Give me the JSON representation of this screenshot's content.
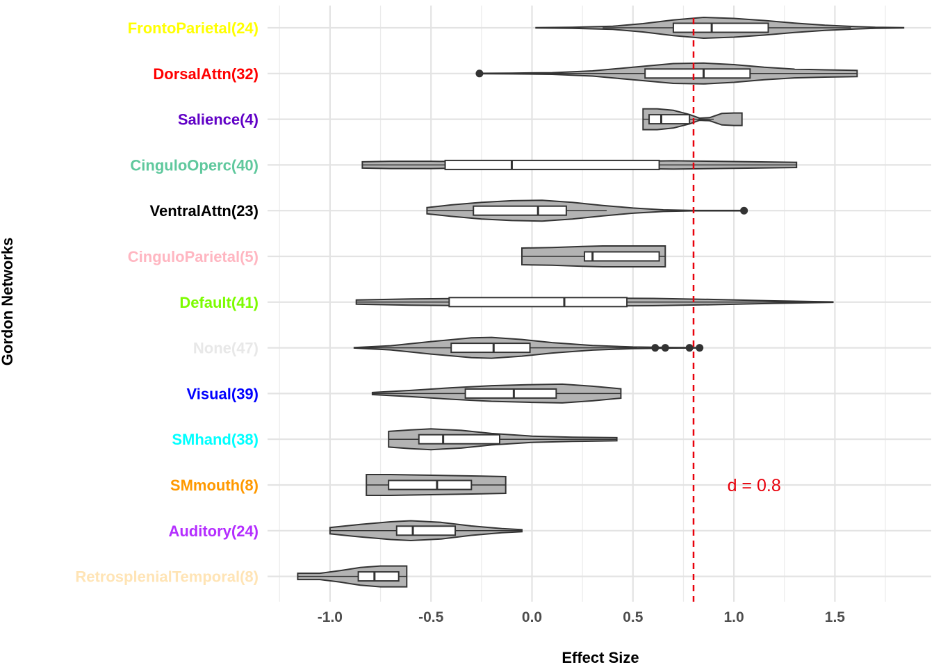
{
  "chart_data": {
    "type": "violin",
    "orientation": "horizontal",
    "xlabel": "Effect Size",
    "ylabel": "Gordon Networks",
    "xlim": [
      -1.25,
      1.9
    ],
    "xticks": [
      -1.0,
      -0.5,
      0.0,
      0.5,
      1.0,
      1.5
    ],
    "xtick_labels": [
      "-1.0",
      "-0.5",
      "0.0",
      "0.5",
      "1.0",
      "1.5"
    ],
    "grid": true,
    "fill_color": "#b3b3b3",
    "reference_line": {
      "x": 0.8,
      "color": "#e8000b",
      "style": "dashed"
    },
    "annotation": {
      "text": "d = 0.8",
      "x": 1.1,
      "category": "SMmouth(8)",
      "color": "#e8000b"
    },
    "categories": [
      {
        "label": "FrontoParietal(24)",
        "color": "#ffff00",
        "min": 0.02,
        "max": 1.84,
        "q1": 0.7,
        "median": 0.89,
        "q3": 1.17,
        "whisker_low": 0.35,
        "whisker_high": 1.58,
        "outliers": [],
        "density": [
          [
            0.02,
            0.02
          ],
          [
            0.2,
            0.05
          ],
          [
            0.4,
            0.15
          ],
          [
            0.55,
            0.4
          ],
          [
            0.7,
            0.75
          ],
          [
            0.85,
            1.0
          ],
          [
            1.0,
            0.9
          ],
          [
            1.15,
            0.7
          ],
          [
            1.3,
            0.45
          ],
          [
            1.45,
            0.25
          ],
          [
            1.6,
            0.12
          ],
          [
            1.7,
            0.05
          ],
          [
            1.84,
            0.02
          ]
        ]
      },
      {
        "label": "DorsalAttn(32)",
        "color": "#ff0000",
        "min": -0.26,
        "max": 1.61,
        "q1": 0.56,
        "median": 0.85,
        "q3": 1.08,
        "whisker_low": -0.26,
        "whisker_high": 1.61,
        "outliers": [
          -0.26
        ],
        "density": [
          [
            -0.26,
            0.02
          ],
          [
            -0.1,
            0.04
          ],
          [
            0.1,
            0.08
          ],
          [
            0.3,
            0.25
          ],
          [
            0.5,
            0.6
          ],
          [
            0.7,
            0.95
          ],
          [
            0.85,
            1.0
          ],
          [
            1.0,
            0.85
          ],
          [
            1.15,
            0.6
          ],
          [
            1.3,
            0.42
          ],
          [
            1.45,
            0.35
          ],
          [
            1.61,
            0.3
          ]
        ]
      },
      {
        "label": "Salience(4)",
        "color": "#6000c6",
        "min": 0.55,
        "max": 1.04,
        "q1": 0.58,
        "median": 0.64,
        "q3": 0.78,
        "whisker_low": 0.55,
        "whisker_high": 0.9,
        "outliers": [],
        "density": [
          [
            0.55,
            1.0
          ],
          [
            0.62,
            1.0
          ],
          [
            0.7,
            0.85
          ],
          [
            0.78,
            0.45
          ],
          [
            0.83,
            0.1
          ],
          [
            0.88,
            0.15
          ],
          [
            0.94,
            0.55
          ],
          [
            1.0,
            0.6
          ],
          [
            1.04,
            0.6
          ]
        ]
      },
      {
        "label": "CinguloOperc(40)",
        "color": "#5fc89d",
        "min": -0.84,
        "max": 1.31,
        "q1": -0.43,
        "median": -0.1,
        "q3": 0.63,
        "whisker_low": -0.84,
        "whisker_high": 1.31,
        "outliers": [],
        "density": [
          [
            -0.84,
            0.3
          ],
          [
            -0.7,
            0.35
          ],
          [
            -0.5,
            0.35
          ],
          [
            -0.3,
            0.3
          ],
          [
            -0.1,
            0.25
          ],
          [
            0.1,
            0.22
          ],
          [
            0.3,
            0.25
          ],
          [
            0.5,
            0.35
          ],
          [
            0.7,
            0.4
          ],
          [
            0.9,
            0.35
          ],
          [
            1.1,
            0.3
          ],
          [
            1.31,
            0.25
          ]
        ]
      },
      {
        "label": "VentralAttn(23)",
        "color": "#000000",
        "min": -0.52,
        "max": 1.05,
        "q1": -0.29,
        "median": 0.03,
        "q3": 0.17,
        "whisker_low": -0.52,
        "whisker_high": 0.37,
        "outliers": [
          1.05
        ],
        "density": [
          [
            -0.52,
            0.3
          ],
          [
            -0.4,
            0.55
          ],
          [
            -0.25,
            0.8
          ],
          [
            -0.1,
            0.95
          ],
          [
            0.05,
            1.0
          ],
          [
            0.2,
            0.8
          ],
          [
            0.35,
            0.5
          ],
          [
            0.5,
            0.25
          ],
          [
            0.65,
            0.08
          ],
          [
            0.8,
            0.02
          ],
          [
            1.05,
            0.02
          ]
        ]
      },
      {
        "label": "CinguloParietal(5)",
        "color": "#ffb6c1",
        "min": -0.05,
        "max": 0.66,
        "q1": 0.26,
        "median": 0.3,
        "q3": 0.63,
        "whisker_low": -0.05,
        "whisker_high": 0.66,
        "outliers": [],
        "density": [
          [
            -0.05,
            0.8
          ],
          [
            0.1,
            0.85
          ],
          [
            0.25,
            0.95
          ],
          [
            0.35,
            1.0
          ],
          [
            0.5,
            1.0
          ],
          [
            0.6,
            1.0
          ],
          [
            0.66,
            1.0
          ]
        ]
      },
      {
        "label": "Default(41)",
        "color": "#7cfc00",
        "min": -0.87,
        "max": 1.49,
        "q1": -0.41,
        "median": 0.16,
        "q3": 0.47,
        "whisker_low": -0.87,
        "whisker_high": 1.49,
        "outliers": [],
        "density": [
          [
            -0.87,
            0.2
          ],
          [
            -0.6,
            0.3
          ],
          [
            -0.3,
            0.35
          ],
          [
            0.0,
            0.38
          ],
          [
            0.3,
            0.38
          ],
          [
            0.6,
            0.35
          ],
          [
            0.9,
            0.25
          ],
          [
            1.2,
            0.12
          ],
          [
            1.49,
            0.02
          ]
        ]
      },
      {
        "label": "None(47)",
        "color": "#e8e8e8",
        "min": -0.88,
        "max": 0.83,
        "q1": -0.4,
        "median": -0.19,
        "q3": -0.01,
        "whisker_low": -0.88,
        "whisker_high": 0.52,
        "outliers": [
          0.61,
          0.66,
          0.78,
          0.83
        ],
        "density": [
          [
            -0.88,
            0.02
          ],
          [
            -0.7,
            0.2
          ],
          [
            -0.5,
            0.6
          ],
          [
            -0.3,
            0.95
          ],
          [
            -0.2,
            1.0
          ],
          [
            -0.05,
            0.8
          ],
          [
            0.1,
            0.5
          ],
          [
            0.3,
            0.22
          ],
          [
            0.5,
            0.08
          ],
          [
            0.7,
            0.03
          ],
          [
            0.83,
            0.02
          ]
        ]
      },
      {
        "label": "Visual(39)",
        "color": "#0000ff",
        "min": -0.79,
        "max": 0.44,
        "q1": -0.33,
        "median": -0.09,
        "q3": 0.12,
        "whisker_low": -0.79,
        "whisker_high": 0.44,
        "outliers": [],
        "density": [
          [
            -0.79,
            0.1
          ],
          [
            -0.6,
            0.3
          ],
          [
            -0.4,
            0.55
          ],
          [
            -0.2,
            0.75
          ],
          [
            0.0,
            0.85
          ],
          [
            0.15,
            0.9
          ],
          [
            0.3,
            0.7
          ],
          [
            0.44,
            0.45
          ]
        ]
      },
      {
        "label": "SMhand(38)",
        "color": "#00ffff",
        "min": -0.71,
        "max": 0.42,
        "q1": -0.56,
        "median": -0.44,
        "q3": -0.16,
        "whisker_low": -0.71,
        "whisker_high": 0.42,
        "outliers": [],
        "density": [
          [
            -0.71,
            0.75
          ],
          [
            -0.6,
            0.9
          ],
          [
            -0.5,
            1.0
          ],
          [
            -0.35,
            0.85
          ],
          [
            -0.2,
            0.55
          ],
          [
            0.0,
            0.3
          ],
          [
            0.2,
            0.2
          ],
          [
            0.42,
            0.15
          ]
        ]
      },
      {
        "label": "SMmouth(8)",
        "color": "#ff9900",
        "min": -0.82,
        "max": -0.13,
        "q1": -0.71,
        "median": -0.47,
        "q3": -0.3,
        "whisker_low": -0.82,
        "whisker_high": -0.13,
        "outliers": [],
        "density": [
          [
            -0.82,
            1.0
          ],
          [
            -0.7,
            1.0
          ],
          [
            -0.55,
            0.95
          ],
          [
            -0.4,
            0.9
          ],
          [
            -0.25,
            0.85
          ],
          [
            -0.13,
            0.8
          ]
        ]
      },
      {
        "label": "Auditory(24)",
        "color": "#b42dff",
        "min": -1.0,
        "max": -0.05,
        "q1": -0.67,
        "median": -0.59,
        "q3": -0.38,
        "whisker_low": -1.0,
        "whisker_high": -0.05,
        "outliers": [],
        "density": [
          [
            -1.0,
            0.3
          ],
          [
            -0.85,
            0.6
          ],
          [
            -0.7,
            0.85
          ],
          [
            -0.6,
            0.95
          ],
          [
            -0.45,
            0.8
          ],
          [
            -0.3,
            0.45
          ],
          [
            -0.15,
            0.2
          ],
          [
            -0.05,
            0.1
          ]
        ]
      },
      {
        "label": "RetrosplenialTemporal(8)",
        "color": "#ffe4b5",
        "min": -1.16,
        "max": -0.62,
        "q1": -0.86,
        "median": -0.78,
        "q3": -0.66,
        "whisker_low": -1.16,
        "whisker_high": -0.62,
        "outliers": [],
        "density": [
          [
            -1.16,
            0.3
          ],
          [
            -1.05,
            0.3
          ],
          [
            -0.95,
            0.55
          ],
          [
            -0.85,
            0.85
          ],
          [
            -0.75,
            1.0
          ],
          [
            -0.68,
            1.0
          ],
          [
            -0.62,
            1.0
          ]
        ]
      }
    ]
  }
}
